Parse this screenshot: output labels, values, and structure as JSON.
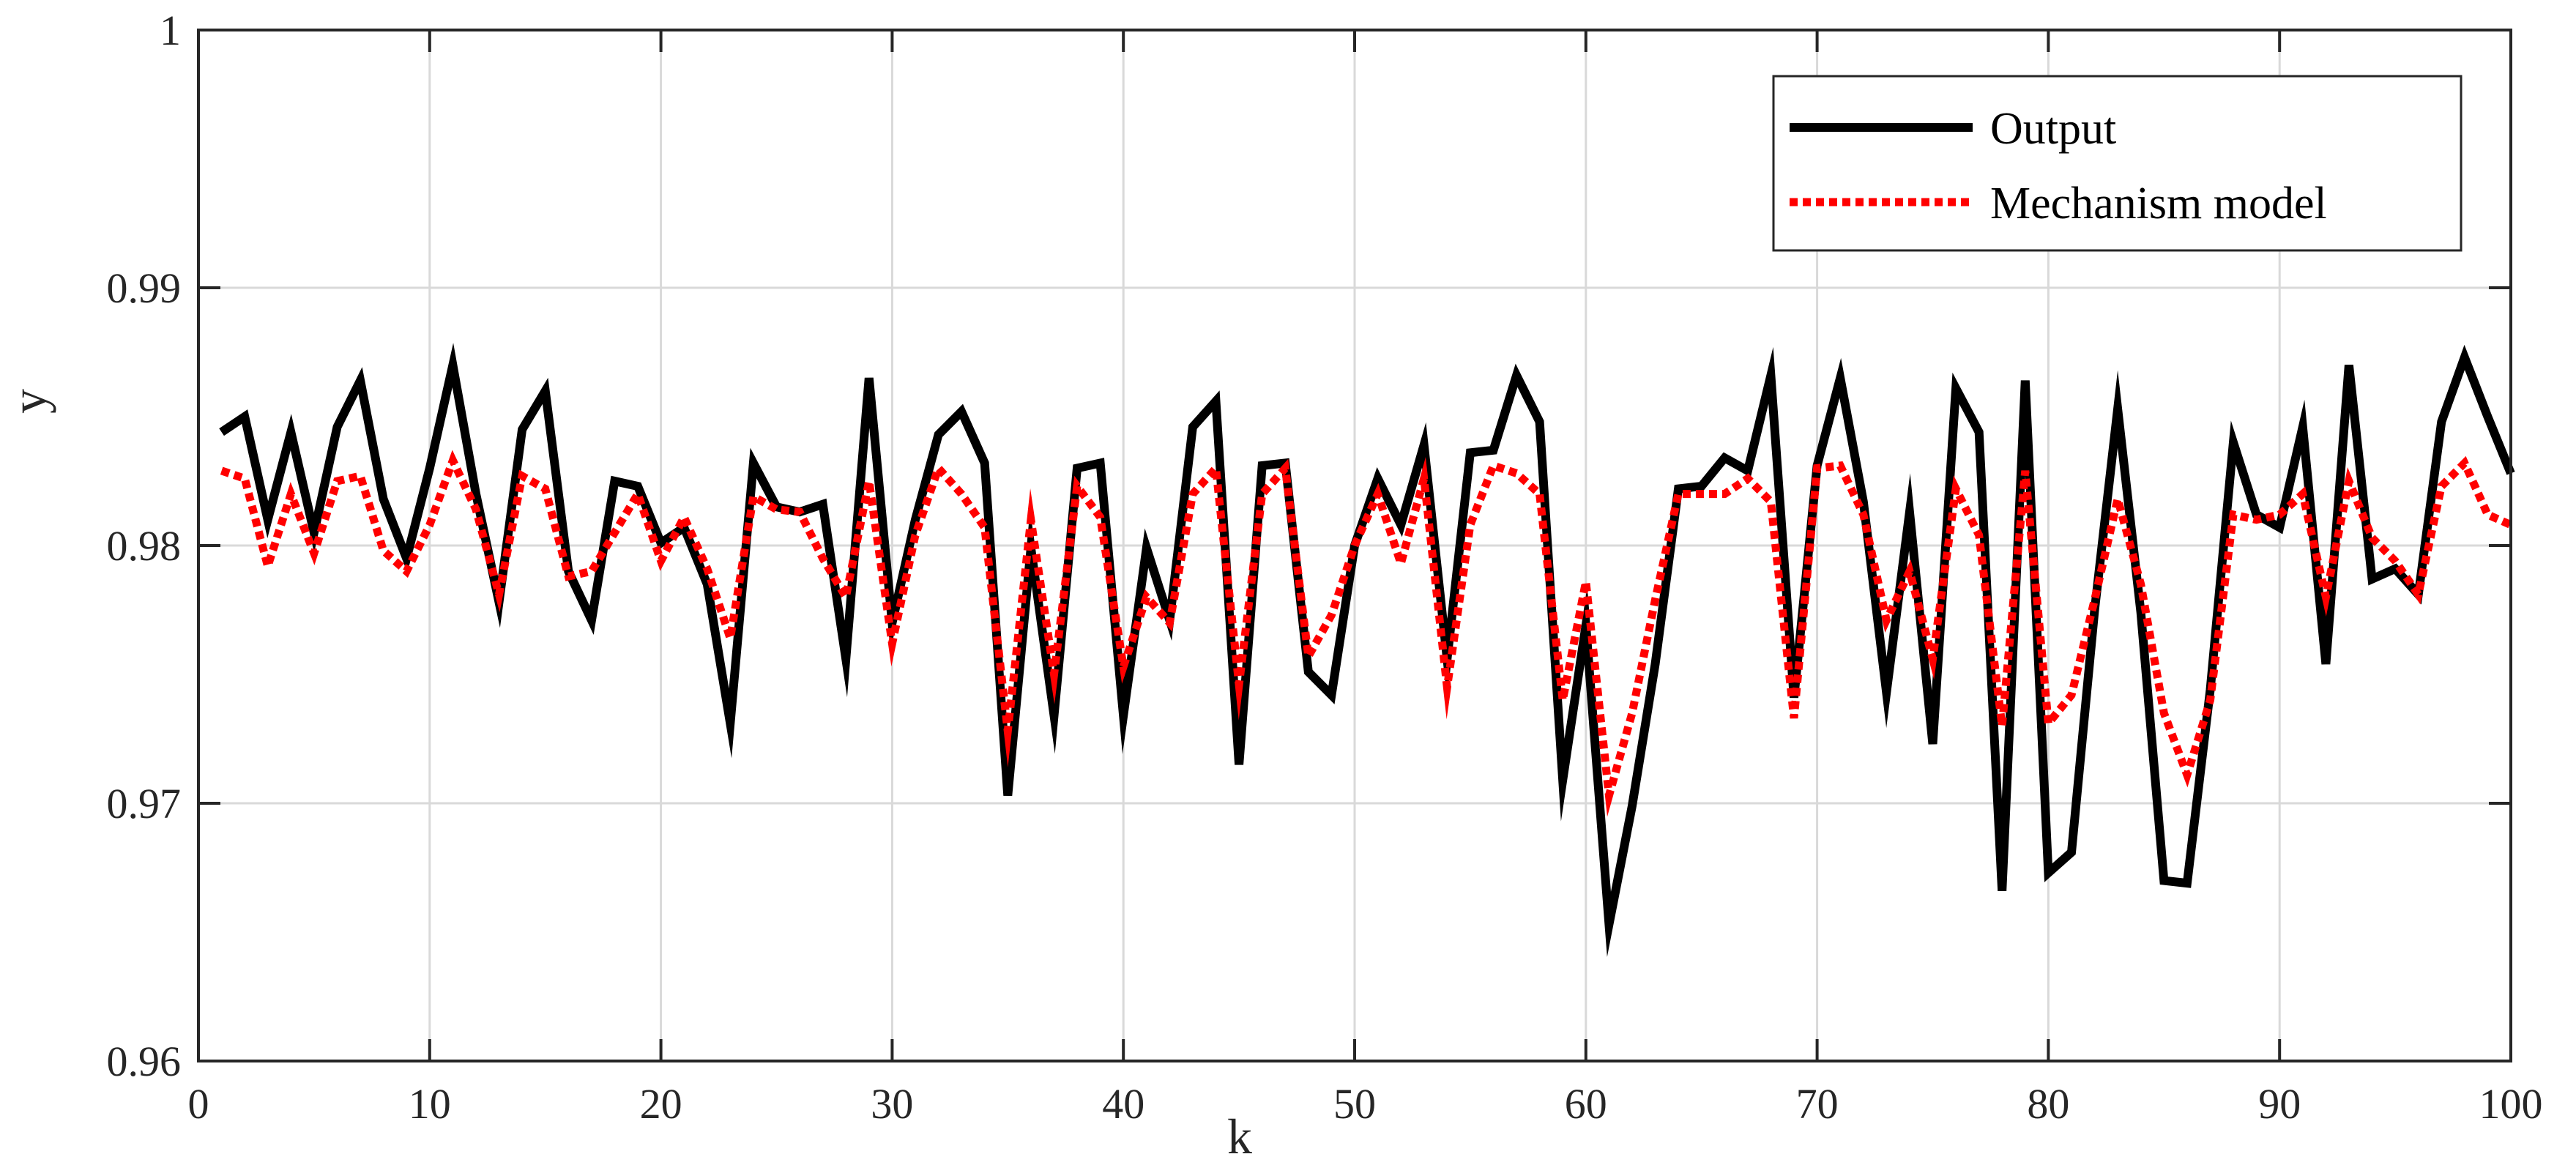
{
  "chart_data": {
    "type": "line",
    "title": "",
    "xlabel": "k",
    "ylabel": "y",
    "xlim": [
      0,
      100
    ],
    "ylim": [
      0.96,
      1.0
    ],
    "xticks": [
      0,
      10,
      20,
      30,
      40,
      50,
      60,
      70,
      80,
      90,
      100
    ],
    "yticks": [
      0.96,
      0.97,
      0.98,
      0.99,
      1.0
    ],
    "xtick_labels": [
      "0",
      "10",
      "20",
      "30",
      "40",
      "50",
      "60",
      "70",
      "80",
      "90",
      "100"
    ],
    "ytick_labels": [
      "0.96",
      "0.97",
      "0.98",
      "0.99",
      "1"
    ],
    "grid": true,
    "legend_position": "top-right",
    "x": [
      1,
      2,
      3,
      4,
      5,
      6,
      7,
      8,
      9,
      10,
      11,
      12,
      13,
      14,
      15,
      16,
      17,
      18,
      19,
      20,
      21,
      22,
      23,
      24,
      25,
      26,
      27,
      28,
      29,
      30,
      31,
      32,
      33,
      34,
      35,
      36,
      37,
      38,
      39,
      40,
      41,
      42,
      43,
      44,
      45,
      46,
      47,
      48,
      49,
      50,
      51,
      52,
      53,
      54,
      55,
      56,
      57,
      58,
      59,
      60,
      61,
      62,
      63,
      64,
      65,
      66,
      67,
      68,
      69,
      70,
      71,
      72,
      73,
      74,
      75,
      76,
      77,
      78,
      79,
      80,
      81,
      82,
      83,
      84,
      85,
      86,
      87,
      88,
      89,
      90,
      91,
      92,
      93,
      94,
      95,
      96,
      97,
      98,
      99,
      100
    ],
    "series": [
      {
        "name": "Output",
        "color": "#000000",
        "style": "solid",
        "values": [
          0.9844,
          0.985,
          0.981,
          0.9844,
          0.9805,
          0.9846,
          0.9864,
          0.9818,
          0.9795,
          0.983,
          0.987,
          0.982,
          0.9778,
          0.9845,
          0.986,
          0.979,
          0.9771,
          0.9825,
          0.9823,
          0.9801,
          0.9807,
          0.9785,
          0.9731,
          0.9832,
          0.9815,
          0.9813,
          0.9816,
          0.9756,
          0.9865,
          0.977,
          0.981,
          0.9843,
          0.9852,
          0.9832,
          0.9703,
          0.9799,
          0.9734,
          0.983,
          0.9832,
          0.9734,
          0.9799,
          0.9771,
          0.9846,
          0.9856,
          0.9715,
          0.9831,
          0.9832,
          0.9751,
          0.9742,
          0.98,
          0.9826,
          0.9808,
          0.9839,
          0.9756,
          0.9836,
          0.9837,
          0.9866,
          0.9848,
          0.9709,
          0.9769,
          0.9653,
          0.9699,
          0.9754,
          0.9822,
          0.9823,
          0.9834,
          0.9829,
          0.9866,
          0.9741,
          0.9831,
          0.9865,
          0.9817,
          0.9743,
          0.9813,
          0.9723,
          0.9861,
          0.9844,
          0.9666,
          0.9864,
          0.9673,
          0.9681,
          0.9775,
          0.9853,
          0.9774,
          0.967,
          0.9669,
          0.9744,
          0.984,
          0.9812,
          0.9807,
          0.9846,
          0.9754,
          0.987,
          0.9787,
          0.9791,
          0.9781,
          0.9848,
          0.9873,
          0.985,
          0.9828
        ]
      },
      {
        "name": "Mechanism model",
        "color": "#ff0000",
        "style": "dotted",
        "values": [
          0.9829,
          0.9826,
          0.9792,
          0.982,
          0.9797,
          0.9825,
          0.9827,
          0.9798,
          0.979,
          0.9808,
          0.9833,
          0.9814,
          0.9781,
          0.9827,
          0.9822,
          0.9788,
          0.979,
          0.9805,
          0.982,
          0.9794,
          0.9811,
          0.9791,
          0.9764,
          0.9819,
          0.9814,
          0.9813,
          0.9795,
          0.978,
          0.9825,
          0.9762,
          0.9804,
          0.983,
          0.982,
          0.9807,
          0.9728,
          0.981,
          0.975,
          0.9823,
          0.9811,
          0.9753,
          0.978,
          0.977,
          0.982,
          0.983,
          0.9746,
          0.982,
          0.983,
          0.9757,
          0.9773,
          0.98,
          0.982,
          0.9793,
          0.9826,
          0.9745,
          0.9808,
          0.9831,
          0.9828,
          0.982,
          0.974,
          0.9786,
          0.9703,
          0.9735,
          0.9779,
          0.982,
          0.982,
          0.982,
          0.9826,
          0.9817,
          0.9733,
          0.983,
          0.9831,
          0.9812,
          0.9771,
          0.979,
          0.9756,
          0.9822,
          0.9804,
          0.973,
          0.9829,
          0.9731,
          0.9742,
          0.9779,
          0.9818,
          0.9785,
          0.9735,
          0.9711,
          0.974,
          0.9812,
          0.981,
          0.9812,
          0.982,
          0.978,
          0.9825,
          0.9803,
          0.9794,
          0.9781,
          0.9823,
          0.9832,
          0.9812,
          0.9808
        ]
      }
    ]
  }
}
